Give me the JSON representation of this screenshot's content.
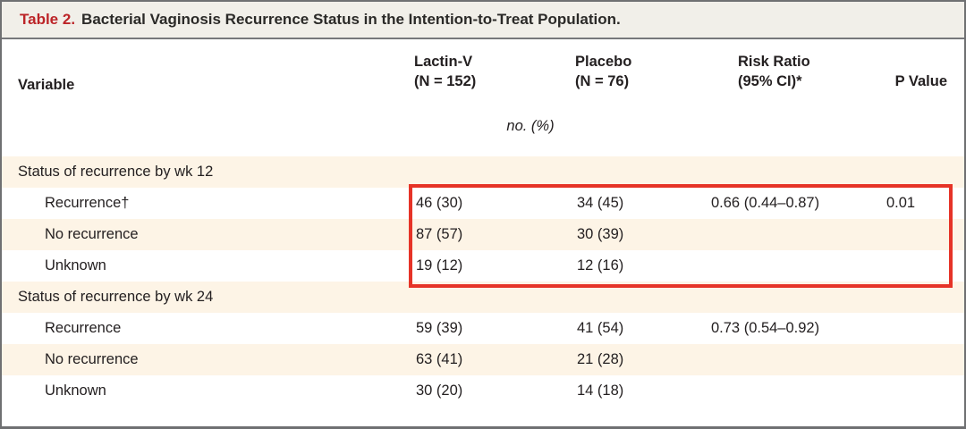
{
  "panel": {
    "title": {
      "label": "Table 2.",
      "text": "Bacterial Vaginosis Recurrence Status in the Intention-to-Treat Population."
    },
    "header": {
      "variable": "Variable",
      "lactin_v": [
        "Lactin-V",
        "(N = 152)"
      ],
      "placebo": [
        "Placebo",
        "(N = 76)"
      ],
      "risk_ratio": [
        "Risk Ratio",
        "(95% CI)*"
      ],
      "p_value": "P Value",
      "units_note": "no. (%)"
    },
    "rows": [
      {
        "label": "Status of recurrence by wk 12",
        "lactin_v": "",
        "placebo": "",
        "risk_ratio": "",
        "p_value": ""
      },
      {
        "label": "Recurrence†",
        "lactin_v": "46 (30)",
        "placebo": "34 (45)",
        "risk_ratio": "0.66 (0.44–0.87)",
        "p_value": "0.01"
      },
      {
        "label": "No recurrence",
        "lactin_v": "87 (57)",
        "placebo": "30 (39)",
        "risk_ratio": "",
        "p_value": ""
      },
      {
        "label": "Unknown",
        "lactin_v": "19 (12)",
        "placebo": "12 (16)",
        "risk_ratio": "",
        "p_value": ""
      },
      {
        "label": "Status of recurrence by wk 24",
        "lactin_v": "",
        "placebo": "",
        "risk_ratio": "",
        "p_value": ""
      },
      {
        "label": "Recurrence",
        "lactin_v": "59 (39)",
        "placebo": "41 (54)",
        "risk_ratio": "0.73 (0.54–0.92)",
        "p_value": ""
      },
      {
        "label": "No recurrence",
        "lactin_v": "63 (41)",
        "placebo": "21 (28)",
        "risk_ratio": "",
        "p_value": ""
      },
      {
        "label": "Unknown",
        "lactin_v": "30 (20)",
        "placebo": "14 (18)",
        "risk_ratio": "",
        "p_value": ""
      }
    ],
    "annotation": {
      "type": "highlight-box",
      "color": "#e63327",
      "covers": "wk 12 Recurrence, No recurrence and Unknown values across all data columns"
    },
    "colors": {
      "title_accent": "#bc2428",
      "title_bar_bg": "#f1efe9",
      "stripe_bg": "#fdf4e6",
      "border_gray": "#6f7072",
      "text": "#242021",
      "highlight_red": "#e63327"
    }
  }
}
